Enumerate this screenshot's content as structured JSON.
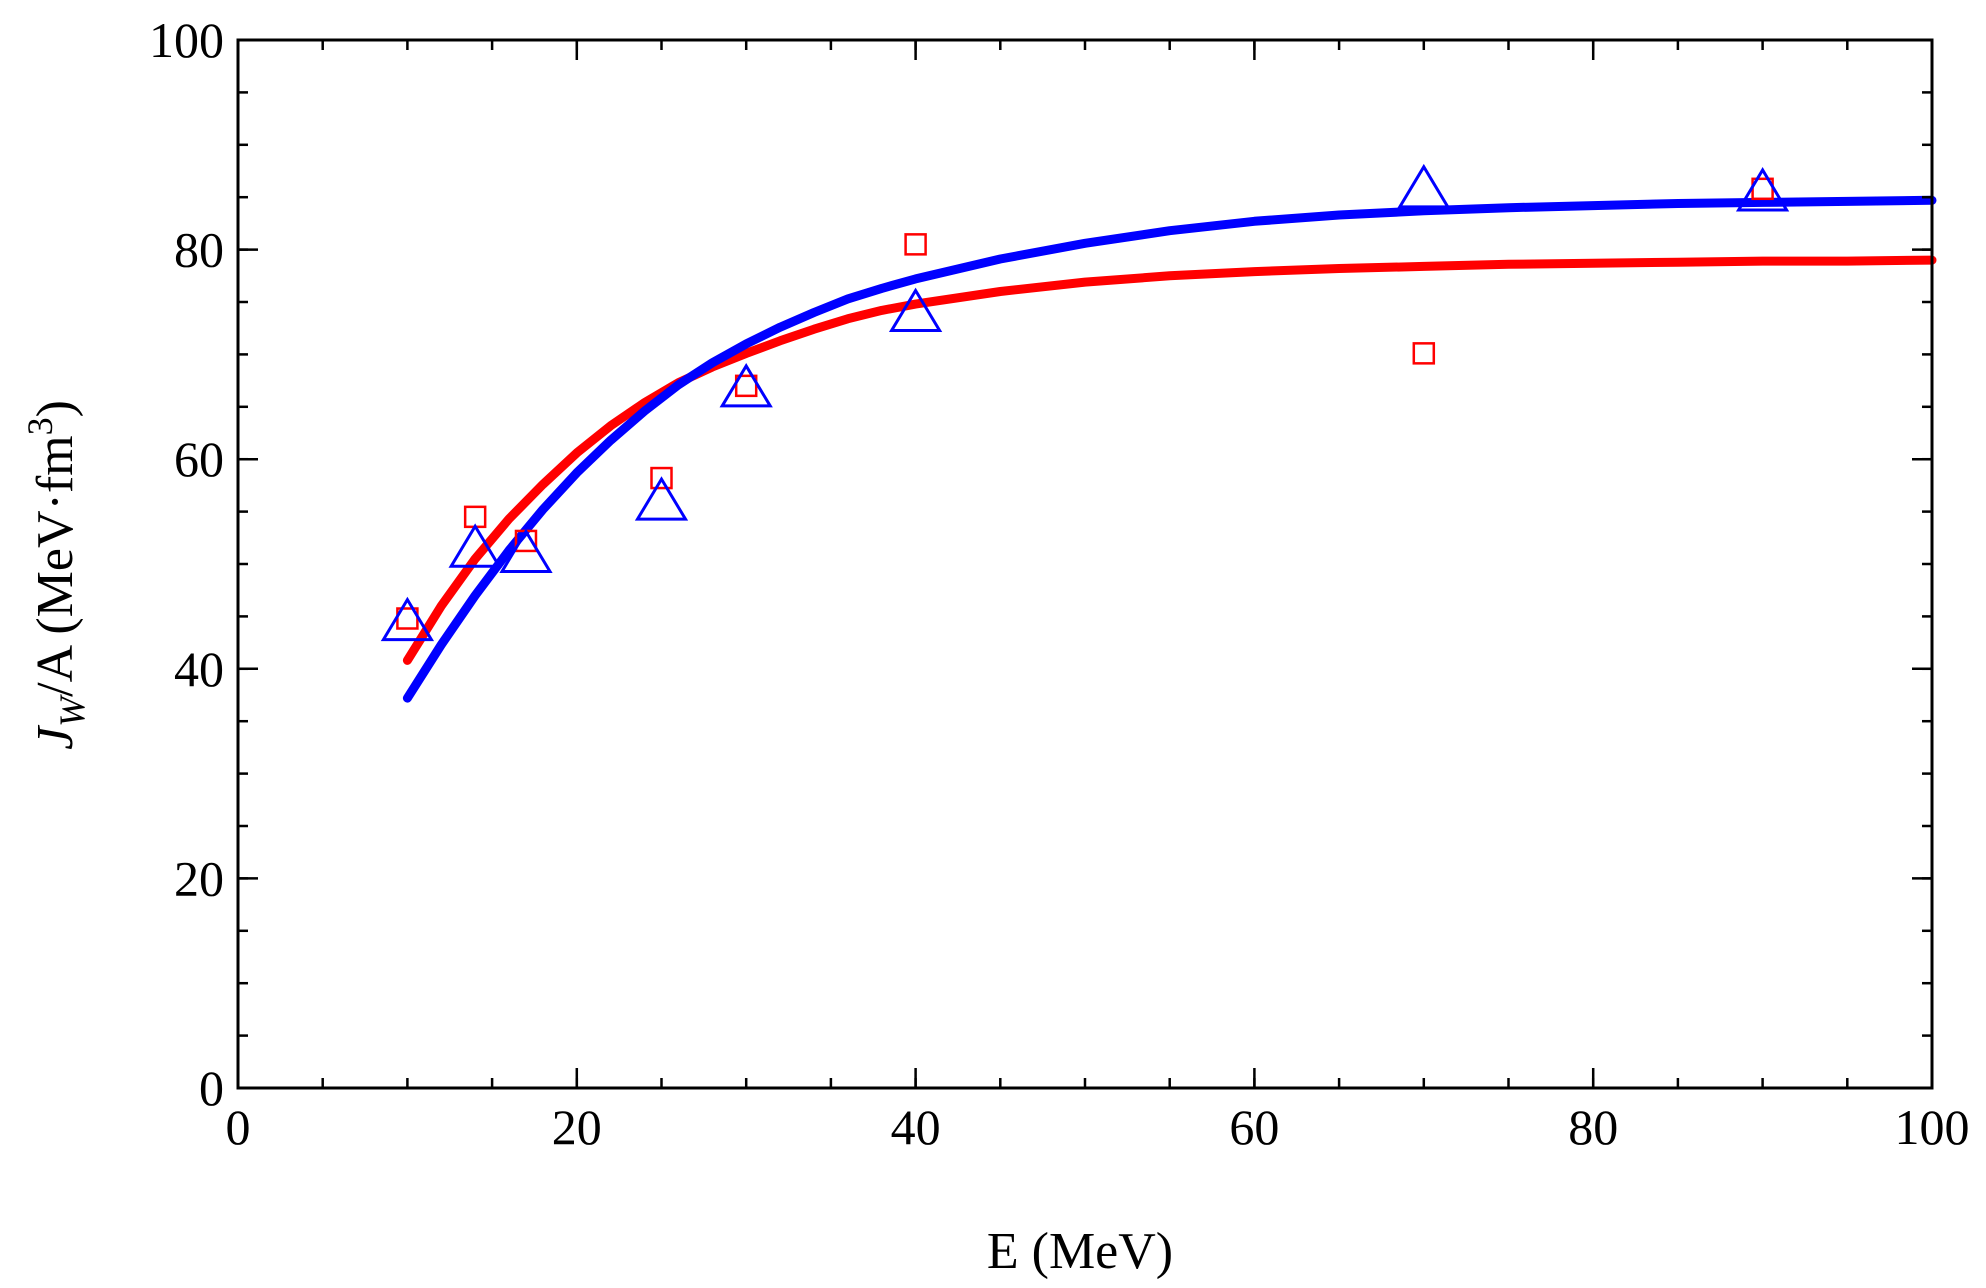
{
  "chart_data": {
    "type": "scatter",
    "title": "",
    "xlabel": "E (MeV)",
    "ylabel": {
      "symbol": "J",
      "subscript": "W",
      "rest": "/A (MeV·fm",
      "superscript": "3",
      "close": ")"
    },
    "xlim": [
      0,
      100
    ],
    "ylim": [
      0,
      100
    ],
    "x_ticks": [
      "0",
      "20",
      "40",
      "60",
      "80",
      "100"
    ],
    "y_ticks": [
      "0",
      "20",
      "40",
      "60",
      "80",
      "100"
    ],
    "x_tick_values": [
      0,
      20,
      40,
      60,
      80,
      100
    ],
    "y_tick_values": [
      0,
      20,
      40,
      60,
      80,
      100
    ],
    "x_minor_step": 5,
    "y_minor_step": 5,
    "grid": false,
    "legend": "none",
    "colors": {
      "red": "#ff0000",
      "blue": "#0000ff",
      "axes": "#000000"
    },
    "series": [
      {
        "marker": "square",
        "color": "#ff0000",
        "points": [
          [
            10,
            44.8
          ],
          [
            14,
            54.5
          ],
          [
            17,
            52.2
          ],
          [
            25,
            58.2
          ],
          [
            30,
            67.0
          ],
          [
            40,
            80.5
          ],
          [
            70,
            70.1
          ],
          [
            90,
            85.8
          ]
        ]
      },
      {
        "marker": "triangle",
        "color": "#0000ff",
        "points": [
          [
            10,
            44.5
          ],
          [
            14,
            51.5
          ],
          [
            17,
            51.0
          ],
          [
            25,
            56.0
          ],
          [
            30,
            66.8
          ],
          [
            40,
            74.0
          ],
          [
            70,
            85.8
          ],
          [
            90,
            85.5
          ]
        ]
      }
    ],
    "fits": [
      {
        "color": "#ff0000",
        "points": [
          [
            10,
            40.8
          ],
          [
            12,
            46.0
          ],
          [
            14,
            50.5
          ],
          [
            16,
            54.3
          ],
          [
            18,
            57.6
          ],
          [
            20,
            60.6
          ],
          [
            22,
            63.2
          ],
          [
            24,
            65.4
          ],
          [
            26,
            67.3
          ],
          [
            28,
            68.8
          ],
          [
            30,
            70.1
          ],
          [
            32,
            71.3
          ],
          [
            34,
            72.4
          ],
          [
            36,
            73.4
          ],
          [
            38,
            74.2
          ],
          [
            40,
            74.8
          ],
          [
            45,
            76.0
          ],
          [
            50,
            76.9
          ],
          [
            55,
            77.5
          ],
          [
            60,
            77.9
          ],
          [
            65,
            78.2
          ],
          [
            70,
            78.4
          ],
          [
            75,
            78.6
          ],
          [
            80,
            78.7
          ],
          [
            85,
            78.8
          ],
          [
            90,
            78.9
          ],
          [
            95,
            78.9
          ],
          [
            100,
            79.0
          ]
        ]
      },
      {
        "color": "#0000ff",
        "points": [
          [
            10,
            37.2
          ],
          [
            12,
            42.3
          ],
          [
            14,
            47.0
          ],
          [
            16,
            51.3
          ],
          [
            18,
            55.2
          ],
          [
            20,
            58.7
          ],
          [
            22,
            61.8
          ],
          [
            24,
            64.6
          ],
          [
            26,
            67.1
          ],
          [
            28,
            69.2
          ],
          [
            30,
            71.0
          ],
          [
            32,
            72.6
          ],
          [
            34,
            74.0
          ],
          [
            36,
            75.3
          ],
          [
            38,
            76.3
          ],
          [
            40,
            77.2
          ],
          [
            45,
            79.1
          ],
          [
            50,
            80.6
          ],
          [
            55,
            81.8
          ],
          [
            60,
            82.7
          ],
          [
            65,
            83.3
          ],
          [
            70,
            83.7
          ],
          [
            75,
            84.0
          ],
          [
            80,
            84.2
          ],
          [
            85,
            84.4
          ],
          [
            90,
            84.5
          ],
          [
            95,
            84.6
          ],
          [
            100,
            84.7
          ]
        ]
      }
    ]
  }
}
